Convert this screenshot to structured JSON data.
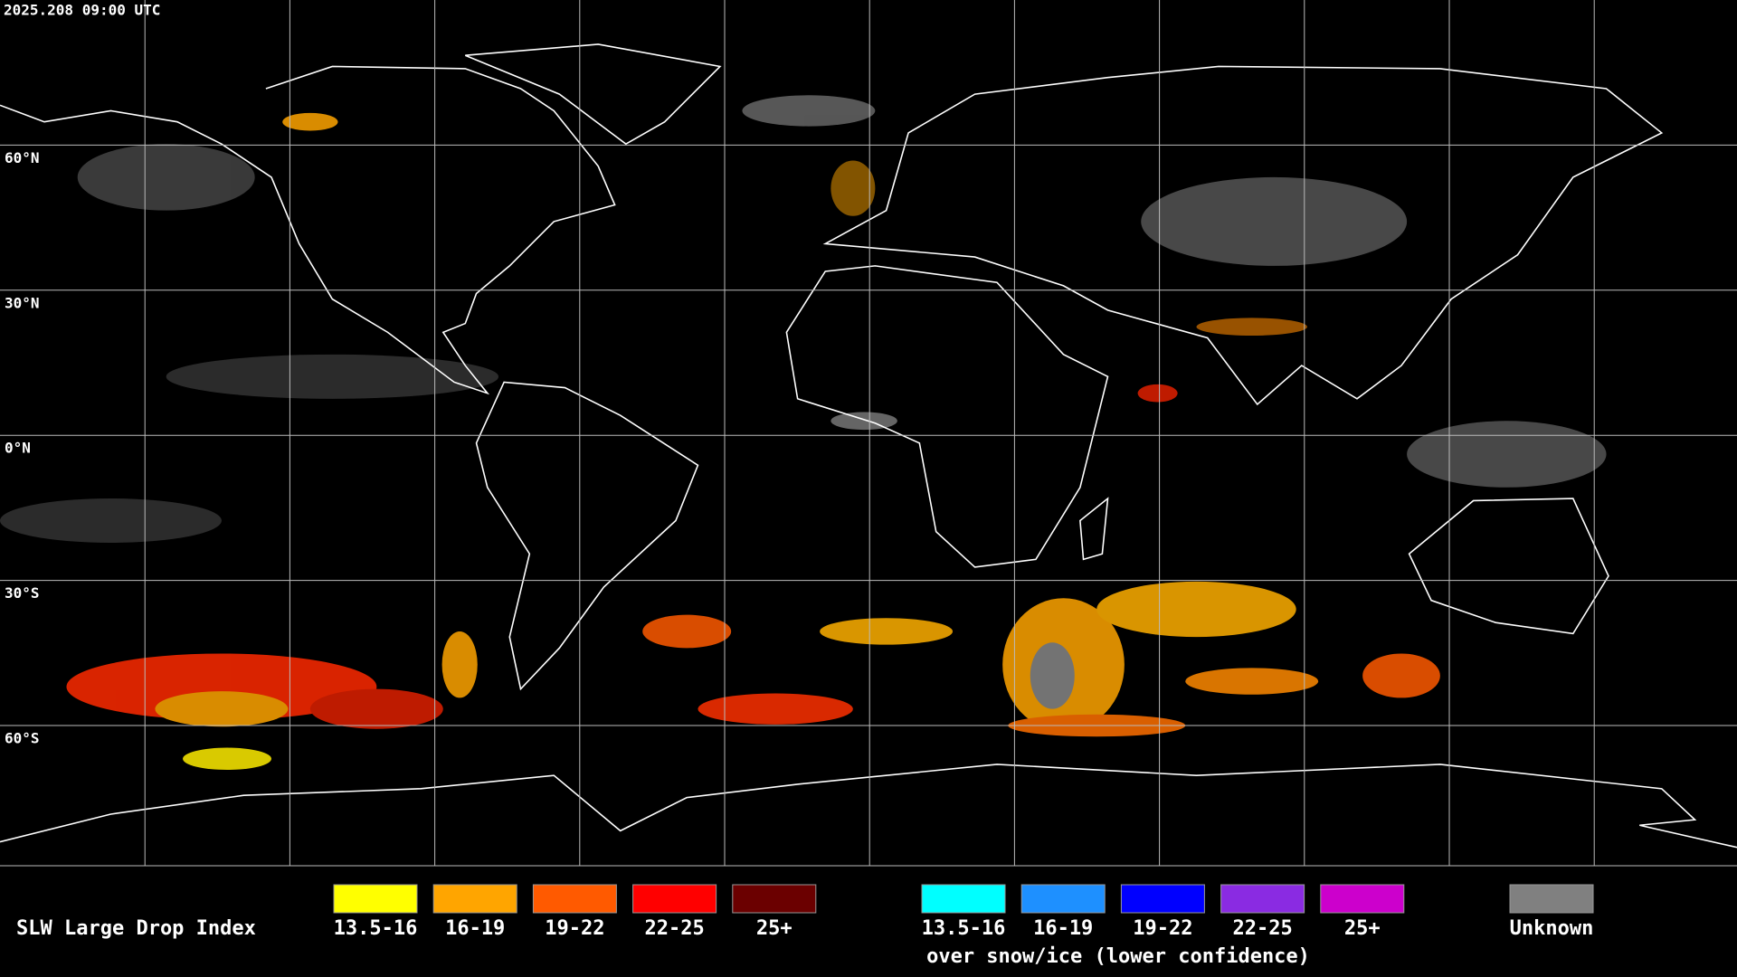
{
  "header": {
    "timestamp": "2025.208 09:00 UTC"
  },
  "map": {
    "lat_labels": [
      "60°N",
      "30°N",
      "0°N",
      "30°S",
      "60°S"
    ]
  },
  "legend": {
    "title": "SLW Large Drop Index",
    "items": [
      {
        "label": "13.5-16",
        "color": "#ffff00"
      },
      {
        "label": "16-19",
        "color": "#ffa500"
      },
      {
        "label": "19-22",
        "color": "#ff5a00"
      },
      {
        "label": "22-25",
        "color": "#ff0000"
      },
      {
        "label": "25+",
        "color": "#6b0000"
      }
    ],
    "snow_items": [
      {
        "label": "13.5-16",
        "color": "#00ffff"
      },
      {
        "label": "16-19",
        "color": "#1e90ff"
      },
      {
        "label": "19-22",
        "color": "#0000ff"
      },
      {
        "label": "22-25",
        "color": "#8a2be2"
      },
      {
        "label": "25+",
        "color": "#cc00cc"
      }
    ],
    "snow_caption": "over snow/ice (lower confidence)",
    "unknown": {
      "label": "Unknown",
      "color": "#808080"
    }
  }
}
